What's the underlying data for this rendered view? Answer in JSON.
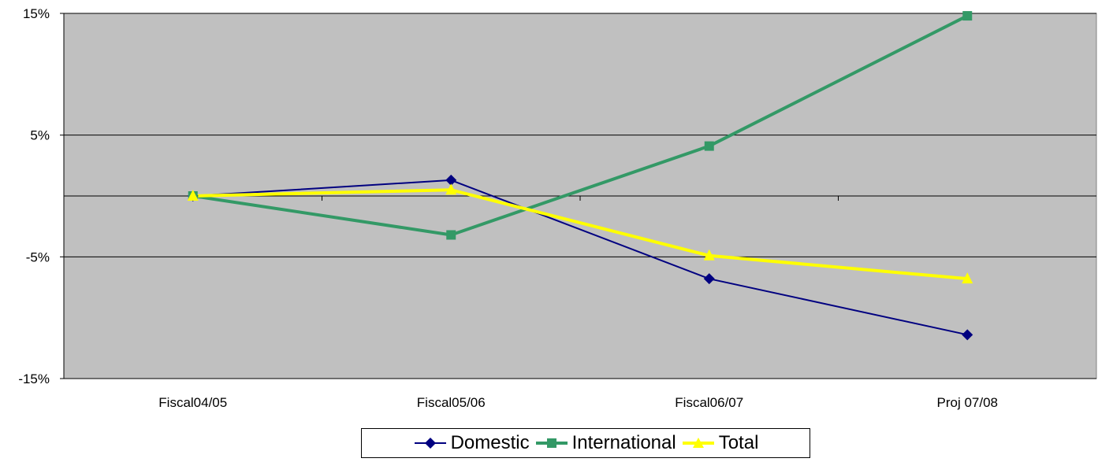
{
  "chart_data": {
    "type": "line",
    "categories": [
      "Fiscal04/05",
      "Fiscal05/06",
      "Fiscal06/07",
      "Proj 07/08"
    ],
    "y_ticks": [
      "15%",
      "5%",
      "-5%",
      "-15%"
    ],
    "ylim": [
      -15,
      15
    ],
    "grid": true,
    "legend_position": "bottom",
    "plot_background": "#c0c0c0",
    "series": [
      {
        "name": "Domestic",
        "values": [
          0,
          1.3,
          -6.8,
          -11.4
        ],
        "color": "#000080",
        "marker": "diamond",
        "line_width": 2
      },
      {
        "name": "International",
        "values": [
          0,
          -3.2,
          4.1,
          14.8
        ],
        "color": "#339966",
        "marker": "square",
        "line_width": 4
      },
      {
        "name": "Total",
        "values": [
          0,
          0.5,
          -4.9,
          -6.8
        ],
        "color": "#ffff00",
        "marker": "triangle",
        "line_width": 4
      }
    ]
  }
}
